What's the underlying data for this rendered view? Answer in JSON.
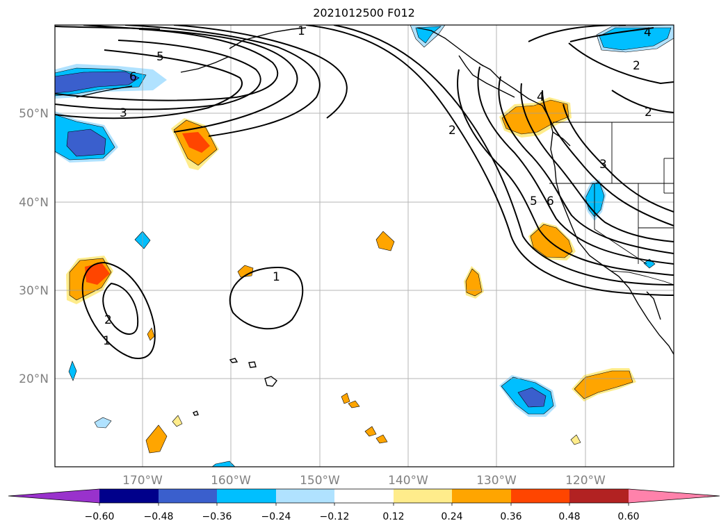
{
  "title": "2021012500 F012",
  "map": {
    "lon_labels": [
      "170°W",
      "160°W",
      "150°W",
      "140°W",
      "130°W",
      "120°W"
    ],
    "lat_labels": [
      "50°N",
      "40°N",
      "30°N",
      "20°N"
    ],
    "contour_labels": [
      "5",
      "6",
      "3",
      "4",
      "2",
      "1",
      "2",
      "3",
      "5",
      "6",
      "1",
      "2",
      "1",
      "4",
      "2"
    ]
  },
  "colorbar": {
    "tick_labels": [
      "−0.60",
      "−0.48",
      "−0.36",
      "−0.24",
      "−0.12",
      "0.12",
      "0.24",
      "0.36",
      "0.48",
      "0.60"
    ],
    "colors": [
      "#9932cc",
      "#00008b",
      "#3a5fcd",
      "#00bfff",
      "#b0e2ff",
      "#ffffff",
      "#ffec8b",
      "#ffa500",
      "#ff4500",
      "#b22222",
      "#ff82ab"
    ]
  }
}
